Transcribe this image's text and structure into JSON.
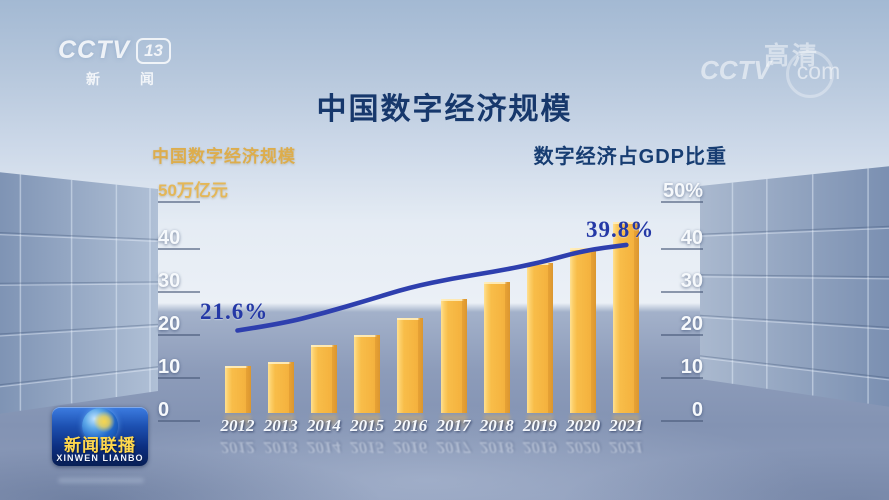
{
  "title": "中国数字经济规模",
  "panel_headers": {
    "left": "中国数字经济规模",
    "right": "数字经济占GDP比重"
  },
  "axes": {
    "left_labels": [
      "50万亿元",
      "40",
      "30",
      "20",
      "10",
      "0"
    ],
    "right_labels": [
      "50%",
      "40",
      "30",
      "20",
      "10",
      "0"
    ]
  },
  "annotations": {
    "line_start": "21.6%",
    "line_end": "39.8%"
  },
  "channel_bug": {
    "brand": "CCTV",
    "channel": "13",
    "label": "新 闻"
  },
  "watermark": {
    "brand": "CCTV",
    "suffix": "com",
    "hd": "高清"
  },
  "program_badge": {
    "name": "新闻联播",
    "romanized": "XINWEN LIANBO"
  },
  "colors": {
    "bar": "#f7bb45",
    "line": "#2e3fae",
    "title_text": "#17386c",
    "yellow_text": "#ddad4c",
    "annotation_text": "#2438a6",
    "axis_text": "#f6f9fc"
  },
  "chart_data": {
    "type": "bar",
    "title": "中国数字经济规模",
    "categories": [
      "2012",
      "2013",
      "2014",
      "2015",
      "2016",
      "2017",
      "2018",
      "2019",
      "2020",
      "2021"
    ],
    "series": [
      {
        "name": "中国数字经济规模",
        "type": "bar",
        "axis": "left",
        "unit": "万亿元",
        "values": [
          11.2,
          12.1,
          16.2,
          18.6,
          22.6,
          27.2,
          31.3,
          35.8,
          39.2,
          45.5
        ]
      },
      {
        "name": "数字经济占GDP比重",
        "type": "line",
        "axis": "right",
        "unit": "%",
        "values": [
          21.6,
          23.0,
          25.3,
          28.0,
          30.8,
          32.7,
          34.2,
          36.0,
          38.6,
          39.8
        ],
        "labeled_points": {
          "2012": "21.6%",
          "2021": "39.8%"
        }
      }
    ],
    "left_axis": {
      "min": 0,
      "max": 50,
      "unit": "万亿元",
      "top_label": "50万亿元"
    },
    "right_axis": {
      "min": 0,
      "max": 50,
      "unit": "%",
      "top_label": "50%"
    },
    "grid": false,
    "legend_position": "top"
  }
}
